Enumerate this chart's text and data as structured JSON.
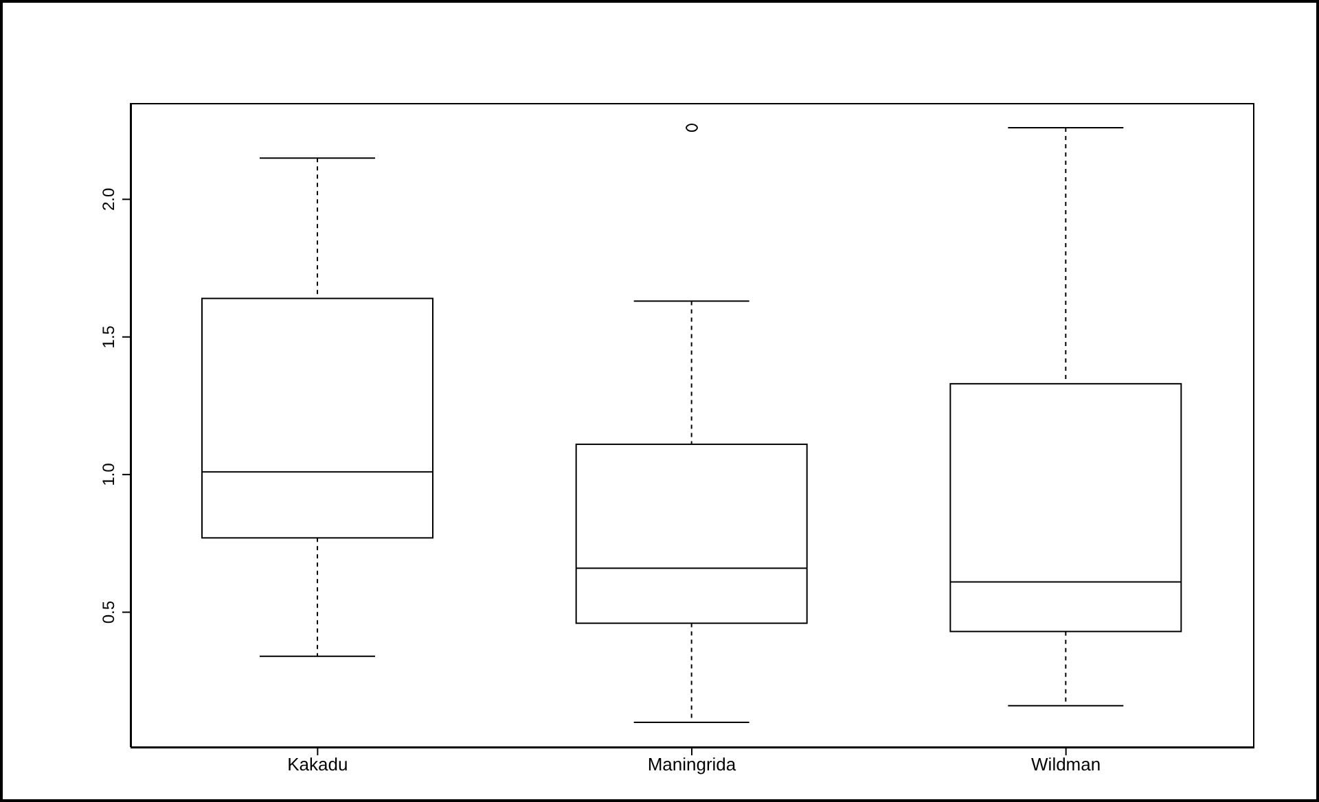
{
  "chart_data": {
    "type": "box",
    "categories": [
      "Kakadu",
      "Maningrida",
      "Wildman"
    ],
    "boxes": [
      {
        "low": 0.34,
        "q1": 0.77,
        "median": 1.01,
        "q3": 1.64,
        "high": 2.15
      },
      {
        "low": 0.1,
        "q1": 0.46,
        "median": 0.66,
        "q3": 1.11,
        "high": 1.63,
        "outliers": [
          2.26
        ]
      },
      {
        "low": 0.16,
        "q1": 0.43,
        "median": 0.61,
        "q3": 1.33,
        "high": 2.26
      }
    ],
    "ylim": [
      0.01,
      2.35
    ],
    "yticks": [
      0.5,
      {
        "value": 1,
        "label": "1.0"
      },
      1.5,
      {
        "value": 2,
        "label": "2.0"
      }
    ]
  }
}
